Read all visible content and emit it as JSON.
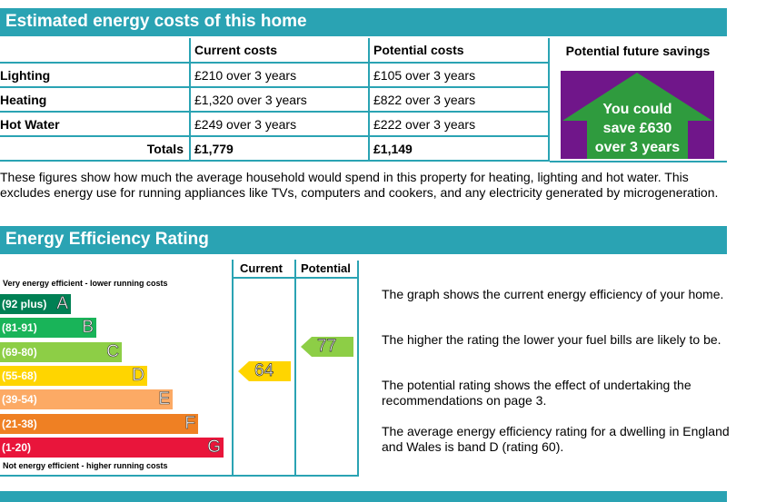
{
  "costs_section": {
    "title": "Estimated energy costs of this home",
    "headers": [
      "Current costs",
      "Potential costs",
      "Potential future savings"
    ],
    "rows": [
      {
        "label": "Lighting",
        "current": "£210 over 3 years",
        "potential": "£105 over 3 years"
      },
      {
        "label": "Heating",
        "current": "£1,320 over 3 years",
        "potential": "£822 over 3 years"
      },
      {
        "label": "Hot Water",
        "current": "£249 over 3 years",
        "potential": "£222 over 3 years"
      }
    ],
    "totals_label": "Totals",
    "totals_current": "£1,779",
    "totals_potential": "£1,149",
    "savings_line1": "You could",
    "savings_line2": "save £630",
    "savings_line3": "over 3 years",
    "note": "These figures show how much the average household would spend in this property for heating, lighting and hot water. This excludes energy use for running appliances like TVs, computers and cookers, and any electricity generated by microgeneration."
  },
  "rating_section": {
    "title": "Energy Efficiency Rating",
    "col_current": "Current",
    "col_potential": "Potential",
    "top_label": "Very energy efficient - lower running costs",
    "bottom_label": "Not energy efficient - higher running costs",
    "bands": [
      {
        "range": "(92 plus)",
        "letter": "A",
        "color": "#008054"
      },
      {
        "range": "(81-91)",
        "letter": "B",
        "color": "#19b459"
      },
      {
        "range": "(69-80)",
        "letter": "C",
        "color": "#8dce46"
      },
      {
        "range": "(55-68)",
        "letter": "D",
        "color": "#ffd500"
      },
      {
        "range": "(39-54)",
        "letter": "E",
        "color": "#fcaa65"
      },
      {
        "range": "(21-38)",
        "letter": "F",
        "color": "#ef8023"
      },
      {
        "range": "(1-20)",
        "letter": "G",
        "color": "#e9153b"
      }
    ],
    "current_rating": "64",
    "potential_rating": "77",
    "explanation": [
      "The graph shows the current energy efficiency of your home.",
      "The higher the rating the lower your fuel bills are likely to be.",
      "The potential rating shows the effect of undertaking the recommendations on page 3.",
      "The average energy efficiency rating for a dwelling in England and Wales is band D (rating 60)."
    ]
  }
}
